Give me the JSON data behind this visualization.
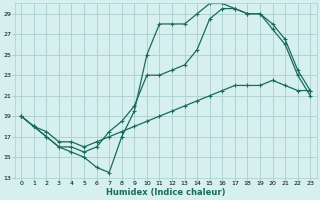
{
  "xlabel": "Humidex (Indice chaleur)",
  "bg_color": "#d6f0f0",
  "grid_color": "#aacece",
  "line_color": "#1a6b5a",
  "xlim": [
    -0.5,
    23.5
  ],
  "ylim": [
    13,
    30
  ],
  "yticks": [
    13,
    15,
    17,
    19,
    21,
    23,
    25,
    27,
    29
  ],
  "xticks": [
    0,
    1,
    2,
    3,
    4,
    5,
    6,
    7,
    8,
    9,
    10,
    11,
    12,
    13,
    14,
    15,
    16,
    17,
    18,
    19,
    20,
    21,
    22,
    23
  ],
  "line1_x": [
    0,
    1,
    2,
    3,
    4,
    5,
    6,
    7,
    8,
    9,
    10,
    11,
    12,
    13,
    14,
    15,
    16,
    17,
    18,
    19,
    20,
    21,
    22,
    23
  ],
  "line1_y": [
    19,
    18,
    17,
    16,
    15.5,
    15,
    14,
    13.5,
    17,
    19.5,
    25,
    28,
    28,
    28,
    29,
    30,
    30,
    29.5,
    29,
    29,
    27.5,
    26,
    23,
    21
  ],
  "line2_x": [
    0,
    1,
    2,
    3,
    4,
    5,
    6,
    7,
    8,
    9,
    10,
    11,
    12,
    13,
    14,
    15,
    16,
    17,
    18,
    19,
    20,
    21,
    22,
    23
  ],
  "line2_y": [
    19,
    18,
    17,
    16,
    16,
    15.5,
    16,
    17.5,
    18.5,
    20,
    23,
    23,
    23.5,
    24,
    25.5,
    28.5,
    29.5,
    29.5,
    29,
    29,
    28,
    26.5,
    23.5,
    21.5
  ],
  "line3_x": [
    0,
    1,
    2,
    3,
    4,
    5,
    6,
    7,
    8,
    9,
    10,
    11,
    12,
    13,
    14,
    15,
    16,
    17,
    18,
    19,
    20,
    21,
    22,
    23
  ],
  "line3_y": [
    19,
    18,
    17.5,
    16.5,
    16.5,
    16,
    16.5,
    17,
    17.5,
    18,
    18.5,
    19,
    19.5,
    20,
    20.5,
    21,
    21.5,
    22,
    22,
    22,
    22.5,
    22,
    21.5,
    21.5
  ]
}
